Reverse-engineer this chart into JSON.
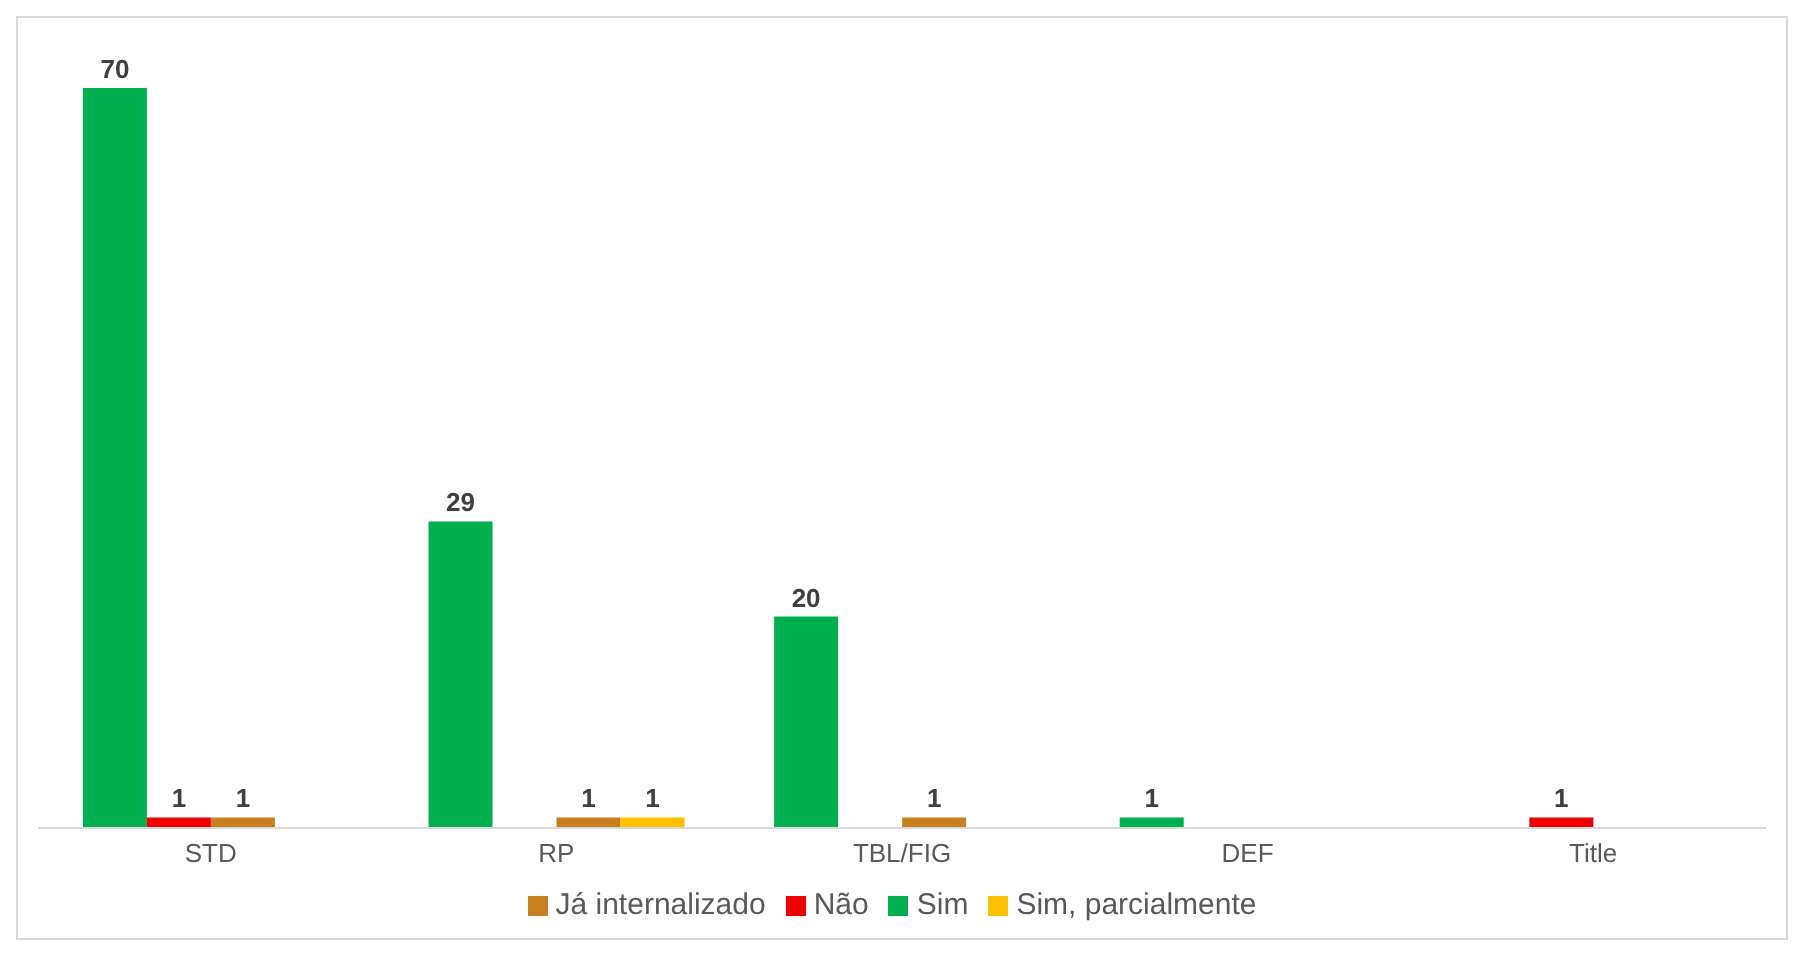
{
  "chart_data": {
    "type": "bar",
    "categories": [
      "STD",
      "RP",
      "TBL/FIG",
      "DEF",
      "Title"
    ],
    "series": [
      {
        "name": "Sim",
        "color": "#00b050",
        "values": [
          70,
          29,
          20,
          1,
          null
        ]
      },
      {
        "name": "Não",
        "color": "#ee0000",
        "values": [
          1,
          null,
          null,
          null,
          1
        ]
      },
      {
        "name": "Já internalizado",
        "color": "#c8801e",
        "values": [
          1,
          1,
          1,
          null,
          null
        ]
      },
      {
        "name": "Sim, parcialmente",
        "color": "#ffc000",
        "values": [
          null,
          1,
          null,
          null,
          null
        ]
      }
    ],
    "data_labels": true,
    "grid": false,
    "legend": "bottom"
  }
}
